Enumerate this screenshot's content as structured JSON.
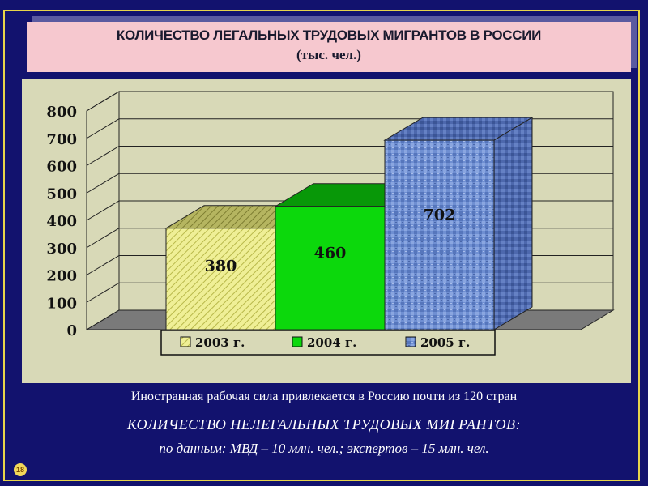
{
  "slide": {
    "title_line1": "КОЛИЧЕСТВО ЛЕГАЛЬНЫХ ТРУДОВЫХ МИГРАНТОВ В РОССИИ",
    "title_line2": "(тыс. чел.)",
    "caption_foreign": "Иностранная рабочая сила привлекается в Россию почти из 120 стран",
    "caption_illegal_heading": "КОЛИЧЕСТВО НЕЛЕГАЛЬНЫХ ТРУДОВЫХ МИГРАНТОВ:",
    "caption_illegal_data": "по данным:  МВД – 10 млн. чел.;  экспертов – 15 млн. чел.",
    "page_number": "18"
  },
  "chart_data": {
    "type": "bar",
    "title": "",
    "xlabel": "",
    "ylabel": "",
    "ylim": [
      0,
      800
    ],
    "yticks": [
      0,
      100,
      200,
      300,
      400,
      500,
      600,
      700,
      800
    ],
    "grid": true,
    "legend_position": "bottom",
    "categories": [
      "2003 г.",
      "2004 г.",
      "2005 г."
    ],
    "values": [
      380,
      460,
      702
    ],
    "data_labels": [
      "380",
      "460",
      "702"
    ],
    "colors": [
      "#ecec8c",
      "#0cd80c",
      "#6f8fd2"
    ]
  }
}
